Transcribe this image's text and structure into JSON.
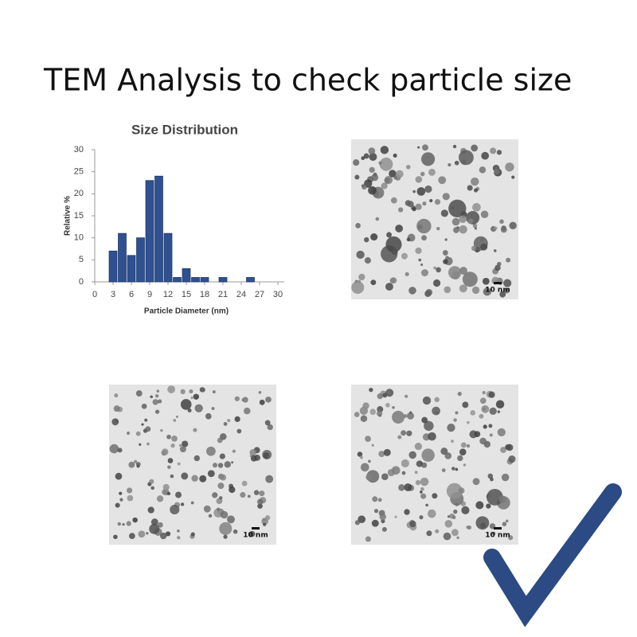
{
  "title": "TEM Analysis to check particle size",
  "chart_data": {
    "type": "histogram",
    "title": "Size Distribution",
    "x_label": "Particle Diameter (nm)",
    "y_label": "Relative %",
    "bins": [
      2.25,
      3.75,
      5.25,
      6.75,
      8.25,
      9.75,
      11.25,
      12.75,
      14.25,
      15.75,
      17.25,
      18.75,
      20.25,
      21.75,
      23.25,
      24.75,
      26.25
    ],
    "values": [
      7,
      11,
      6,
      10,
      23,
      24,
      11,
      1,
      3,
      1,
      1,
      0,
      1,
      0,
      0,
      1
    ],
    "color": "#2f5191",
    "xlim": [
      0,
      30
    ],
    "xticks": [
      0,
      3,
      6,
      9,
      12,
      15,
      18,
      21,
      24,
      27,
      30
    ],
    "ylim": [
      0,
      30
    ],
    "yticks": [
      0,
      5,
      10,
      15,
      20,
      25,
      30
    ],
    "grid": false
  },
  "images": [
    {
      "scale_label": "10 nm"
    },
    {
      "scale_label": "10 nm"
    },
    {
      "scale_label": "10 nm"
    }
  ]
}
